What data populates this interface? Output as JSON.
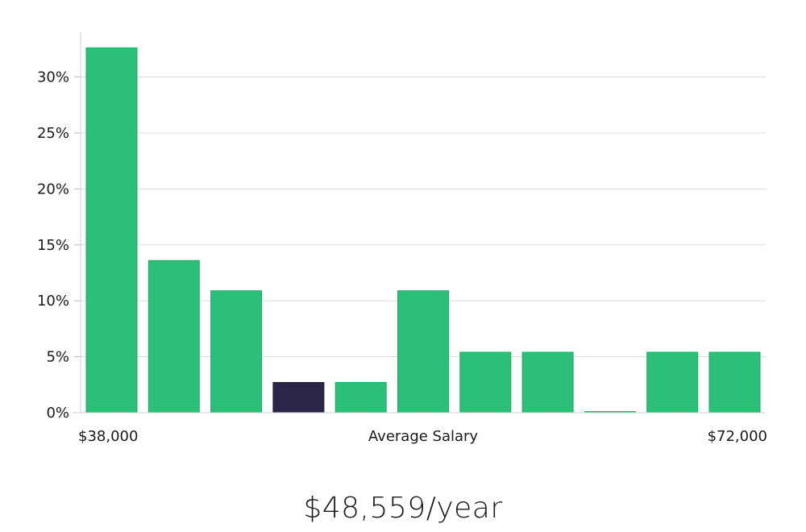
{
  "chart_data": {
    "type": "bar",
    "values": [
      32.6,
      13.6,
      10.9,
      2.7,
      2.7,
      10.9,
      5.4,
      5.4,
      0.1,
      5.4,
      5.4
    ],
    "highlight_index": 3,
    "ylim": [
      0,
      34
    ],
    "yticks": [
      0,
      5,
      10,
      15,
      20,
      25,
      30
    ],
    "ytick_labels": [
      "0%",
      "5%",
      "10%",
      "15%",
      "20%",
      "25%",
      "30%"
    ],
    "x_min_label": "$38,000",
    "x_max_label": "$72,000",
    "xlabel": "Average Salary",
    "grid": true,
    "bar_color": "#2bbf78",
    "highlight_color": "#2b2647"
  },
  "summary": {
    "salary": "$48,559/year"
  }
}
